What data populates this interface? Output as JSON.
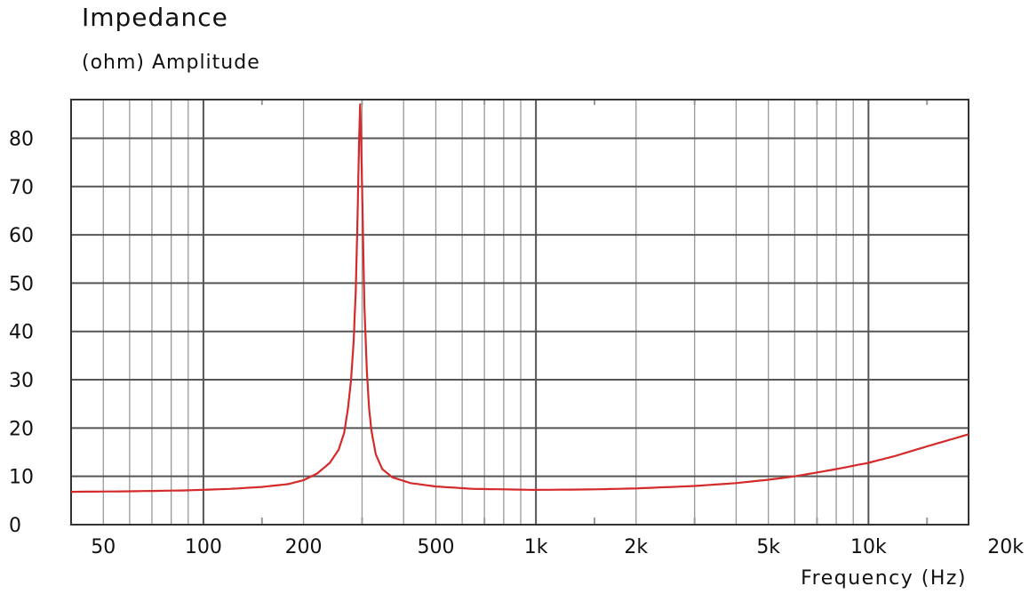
{
  "chart_data": {
    "type": "line",
    "title": "Impedance",
    "ylabel": "(ohm)  Amplitude",
    "xlabel": "Frequency  (Hz)",
    "x_scale": "log",
    "xlim": [
      40,
      20000
    ],
    "ylim": [
      0,
      88
    ],
    "grid": true,
    "legend": "none",
    "line_color": "#d42a2a",
    "grid_color": "#999999",
    "major_grid_color": "#555555",
    "x_ticks": [
      {
        "value": 50,
        "label": "50"
      },
      {
        "value": 100,
        "label": "100"
      },
      {
        "value": 200,
        "label": "200"
      },
      {
        "value": 500,
        "label": "500"
      },
      {
        "value": 1000,
        "label": "1k"
      },
      {
        "value": 2000,
        "label": "2k"
      },
      {
        "value": 5000,
        "label": "5k"
      },
      {
        "value": 10000,
        "label": "10k"
      },
      {
        "value": 20000,
        "label": "20k"
      }
    ],
    "y_ticks": [
      {
        "value": 0,
        "label": "0"
      },
      {
        "value": 10,
        "label": "10"
      },
      {
        "value": 20,
        "label": "20"
      },
      {
        "value": 30,
        "label": "30"
      },
      {
        "value": 40,
        "label": "40"
      },
      {
        "value": 50,
        "label": "50"
      },
      {
        "value": 60,
        "label": "60"
      },
      {
        "value": 70,
        "label": "70"
      },
      {
        "value": 80,
        "label": "80"
      }
    ],
    "series": [
      {
        "x": [
          40,
          60,
          90,
          120,
          150,
          180,
          200,
          220,
          240,
          255,
          265,
          272,
          278,
          283,
          287,
          290,
          292,
          294,
          296,
          298,
          300,
          302,
          305,
          310,
          315,
          320,
          330,
          345,
          370,
          420,
          500,
          650,
          1000,
          1500,
          2000,
          3000,
          4000,
          5000,
          6000,
          7000,
          8000,
          10000,
          12000,
          15000,
          20000
        ],
        "y": [
          6.8,
          6.9,
          7.1,
          7.4,
          7.8,
          8.4,
          9.2,
          10.6,
          12.8,
          15.5,
          19.0,
          24.0,
          30.0,
          38.0,
          48.0,
          60.0,
          70.0,
          80.0,
          87.0,
          80.0,
          70.0,
          60.0,
          45.0,
          32.0,
          24.0,
          19.5,
          14.5,
          11.5,
          9.8,
          8.6,
          7.9,
          7.4,
          7.2,
          7.3,
          7.5,
          8.0,
          8.6,
          9.3,
          10.0,
          10.8,
          11.5,
          12.8,
          14.2,
          16.2,
          18.7
        ]
      }
    ]
  }
}
